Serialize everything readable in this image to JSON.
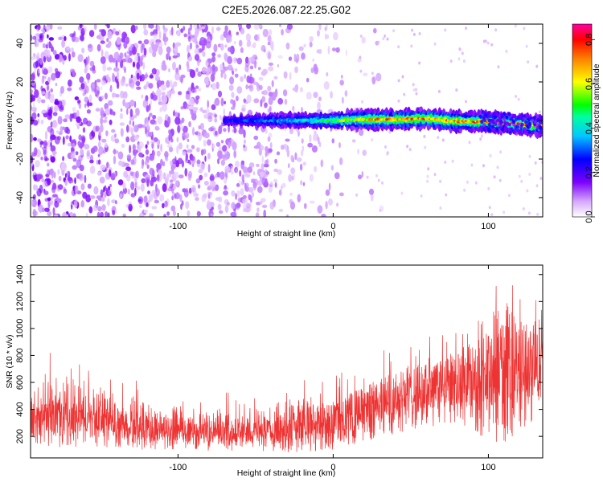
{
  "title": "C2E5.2026.087.22.25.G02",
  "chart_data": [
    {
      "type": "heatmap",
      "name": "spectrogram",
      "xlabel": "Height of straight line (km)",
      "ylabel": "Frequency (Hz)",
      "xlim": [
        -195,
        135
      ],
      "ylim": [
        -50,
        50
      ],
      "x_ticks": [
        -100,
        0,
        100
      ],
      "x_tick_labels": [
        "-100",
        "0",
        "100"
      ],
      "y_ticks": [
        -40,
        -20,
        0,
        20,
        40
      ],
      "y_tick_labels": [
        "-40",
        "-20",
        "0",
        "20",
        "40"
      ],
      "noise_region_x": [
        -195,
        15
      ],
      "signal_line": {
        "x": [
          -70,
          -40,
          -20,
          0,
          20,
          40,
          60,
          80,
          100,
          120,
          135
        ],
        "frequency_hz": [
          0,
          0,
          0,
          0,
          0.5,
          0.5,
          1,
          -0.5,
          -0.5,
          -2,
          -3
        ],
        "peak_normalized_amplitude": [
          0.3,
          0.4,
          0.45,
          0.6,
          0.8,
          0.85,
          0.85,
          0.85,
          0.85,
          0.85,
          0.85
        ]
      },
      "colorbar": {
        "label": "Normalized spectral amplitude",
        "range": [
          0,
          0.87
        ],
        "ticks": [
          0,
          0.2,
          0.4,
          0.6,
          0.8
        ],
        "tick_labels": [
          "0.0",
          "0.2",
          "0.4",
          "0.6",
          "0.8"
        ],
        "colors": [
          "#ffffff",
          "#e0b8ff",
          "#7c00ff",
          "#0000ff",
          "#00e0ff",
          "#00ff00",
          "#ffff00",
          "#ff8000",
          "#ff0000",
          "#ff00a0"
        ]
      }
    },
    {
      "type": "line",
      "name": "snr",
      "xlabel": "Height of straight line (km)",
      "ylabel": "SNR (10 * v/v)",
      "xlim": [
        -195,
        135
      ],
      "ylim": [
        40,
        1470
      ],
      "x_ticks": [
        -100,
        0,
        100
      ],
      "x_tick_labels": [
        "-100",
        "0",
        "100"
      ],
      "y_ticks": [
        200,
        400,
        600,
        800,
        1000,
        1200,
        1400
      ],
      "y_tick_labels": [
        "200",
        "400",
        "600",
        "800",
        "1000",
        "1200",
        "1400"
      ],
      "color": "#ee3333",
      "envelope": {
        "x": [
          -195,
          -180,
          -160,
          -140,
          -120,
          -100,
          -80,
          -60,
          -40,
          -20,
          0,
          20,
          40,
          60,
          80,
          95,
          110,
          120,
          135
        ],
        "lower": [
          140,
          120,
          120,
          110,
          100,
          100,
          90,
          90,
          80,
          70,
          100,
          150,
          220,
          260,
          300,
          200,
          120,
          250,
          350
        ],
        "upper": [
          600,
          780,
          720,
          620,
          520,
          500,
          470,
          470,
          520,
          620,
          560,
          700,
          880,
          900,
          900,
          1050,
          1360,
          1250,
          1180
        ],
        "mean": [
          300,
          340,
          330,
          300,
          260,
          250,
          230,
          230,
          230,
          280,
          320,
          420,
          500,
          560,
          620,
          680,
          800,
          760,
          760
        ]
      }
    }
  ]
}
